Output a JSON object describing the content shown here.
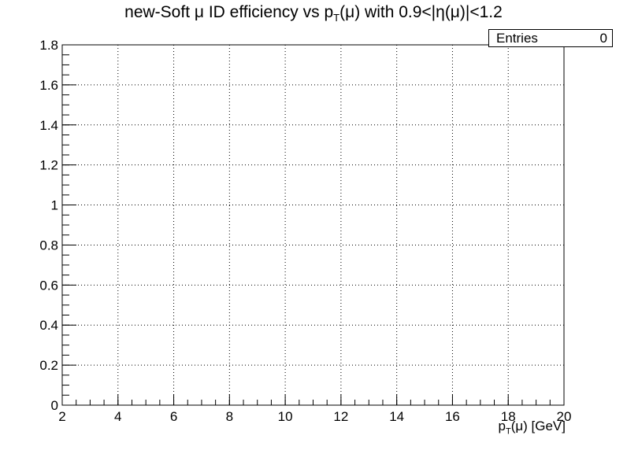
{
  "chart_data": {
    "type": "scatter",
    "title": {
      "prefix": "new-Soft ",
      "mu": "μ",
      "middle": " ID efficiency vs p",
      "sub": "T",
      "suffix": "(μ) with 0.9<|η(μ)|<1.2"
    },
    "xlabel": {
      "prefix": "p",
      "sub": "T",
      "suffix": "(μ) [GeV]"
    },
    "ylabel": "",
    "xlim": [
      2,
      20
    ],
    "ylim": [
      0,
      1.8
    ],
    "x_ticks": [
      "2",
      "4",
      "6",
      "8",
      "10",
      "12",
      "14",
      "16",
      "18",
      "20"
    ],
    "y_ticks": [
      "0",
      "0.2",
      "0.4",
      "0.6",
      "0.8",
      "1",
      "1.2",
      "1.4",
      "1.6",
      "1.8"
    ],
    "grid": true,
    "series": [],
    "stats_box": {
      "label": "Entries",
      "value": "0"
    }
  }
}
